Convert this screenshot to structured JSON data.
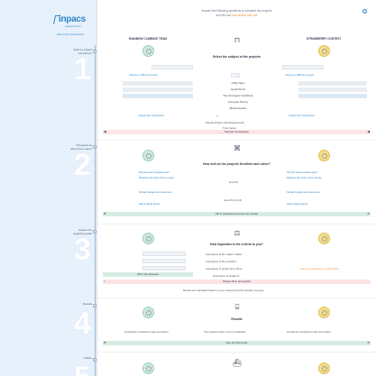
{
  "app": {
    "logo_text": "inpacs",
    "logo_sub": "analysis & cloud",
    "side_link": "About this Comparison"
  },
  "steps": [
    {
      "num": "1",
      "label": "Select a project\ncomparison"
    },
    {
      "num": "2",
      "label": "Fill questions\nabout the projects"
    },
    {
      "num": "3",
      "label": "Answer the\nweighting guide"
    },
    {
      "num": "4",
      "label": "Results"
    },
    {
      "num": "5",
      "label": "Outline"
    }
  ],
  "header": {
    "line1": "Answer the following questions to compare the projects",
    "line2_pre": "and find out ",
    "line2_hl": "how similar they are",
    "info_icon": "info-icon"
  },
  "section1": {
    "left_title": "RAINBOW CLIMBING TEAM",
    "right_title": "STRAWBERRY CONTEST",
    "question": "Select the subject of the projects",
    "left_link": "Choose a different project",
    "right_link": "Choose a different project",
    "rows": [
      {
        "mid": "A Big Topic"
      },
      {
        "mid": "Aerial Shots"
      },
      {
        "mid": "The Strongest Conditions",
        "style": "blue"
      },
      {
        "mid": "Compute Theory"
      },
      {
        "mid": "Bioinformatics"
      }
    ],
    "mid_link_left": "Inspect the comparison",
    "mid_link_right": "Inspect the comparison",
    "row_a": "Sample Project with Requirements",
    "row_b": "Time Series",
    "banner": "Sample Comparison"
  },
  "section2": {
    "question": "How well do the projects fit within each other?",
    "mid_a": "Good fit",
    "mid_b": "Good fit for both",
    "left_items": [
      "Fits the exact requirements",
      "Matches the style of the course",
      "Similar budget and resources",
      "Same target group"
    ],
    "right_items": [
      "Fits the exact requirements",
      "Matches the style of the course",
      "Similar budget and resources",
      "Same target group"
    ],
    "banner": "Fill in questions and see the results"
  },
  "section3": {
    "question": "How important is the criteria to you?",
    "rows": [
      "Importance of the subject matter",
      "Importance of the overall fit",
      "Importance of project time frame",
      "Importance of budget fit"
    ],
    "note": "Select a weighting for each criteria",
    "green_row": "Fill in the answers",
    "pink_row": "Please fill in all weights",
    "footer": "Results are calculated based on your answers and the weights you gave"
  },
  "section4": {
    "title": "Results",
    "left": "Overall the comparison was successful",
    "mid": "The projects share a lot of similarities",
    "right": "Overall the comparison was successful",
    "banner": "See the full report"
  },
  "colors": {
    "accent": "#2f85c8",
    "highlight": "#e8943a",
    "teal_badge": "#cfe8df",
    "yellow_badge": "#f3dd8f",
    "sidebar_bg": "#e6f1fb"
  }
}
